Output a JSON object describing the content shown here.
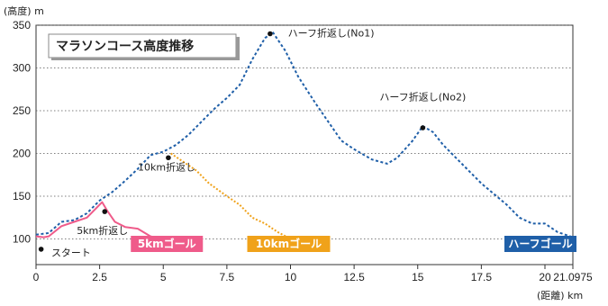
{
  "chart_data": {
    "type": "line",
    "title": "マラソンコース高度推移",
    "ylabel": "(高度) m",
    "xlabel": "(距離) km",
    "ylim": [
      70,
      350
    ],
    "xlim": [
      0,
      21.0975
    ],
    "y_ticks": [
      "100",
      "150",
      "200",
      "250",
      "300",
      "350"
    ],
    "x_ticks": [
      "0",
      "2.5",
      "5",
      "7.5",
      "10",
      "12.5",
      "15",
      "17.5",
      "20",
      "21.0975"
    ],
    "grid": true,
    "series": [
      {
        "name": "ハーフ",
        "color": "#1f5fa8",
        "style": "dashed",
        "x": [
          0,
          0.5,
          1,
          1.5,
          2,
          2.5,
          3,
          3.5,
          4,
          4.5,
          5,
          5.5,
          6,
          6.5,
          7,
          7.5,
          8,
          8.5,
          9,
          9.3,
          9.8,
          10.3,
          11,
          12,
          12.5,
          13.2,
          13.8,
          14.2,
          14.8,
          15.2,
          15.6,
          16,
          16.5,
          17.5,
          18.5,
          19,
          19.5,
          20,
          20.5,
          21.0975
        ],
        "y": [
          105,
          107,
          120,
          122,
          130,
          145,
          155,
          168,
          182,
          198,
          202,
          210,
          222,
          237,
          252,
          265,
          280,
          310,
          335,
          342,
          320,
          290,
          258,
          215,
          205,
          193,
          188,
          195,
          215,
          232,
          225,
          210,
          195,
          165,
          140,
          125,
          118,
          118,
          108,
          102
        ]
      },
      {
        "name": "10km",
        "color": "#f0a21a",
        "style": "dotted",
        "x": [
          5.3,
          5.8,
          6.3,
          6.8,
          7.5,
          8,
          8.5,
          9,
          9.5,
          10
        ],
        "y": [
          200,
          190,
          180,
          165,
          150,
          140,
          125,
          118,
          108,
          100
        ]
      },
      {
        "name": "5km",
        "color": "#ef5b8a",
        "style": "solid",
        "x": [
          0,
          0.3,
          0.5,
          1,
          1.5,
          2,
          2.4,
          2.6,
          2.8,
          3.1,
          3.5,
          4,
          4.5,
          5
        ],
        "y": [
          103,
          102,
          103,
          115,
          120,
          125,
          137,
          143,
          133,
          120,
          114,
          112,
          103,
          100
        ]
      }
    ],
    "points": [
      {
        "x": 0.2,
        "y": 88
      },
      {
        "x": 2.7,
        "y": 132
      },
      {
        "x": 5.2,
        "y": 195
      },
      {
        "x": 9.2,
        "y": 340
      },
      {
        "x": 15.2,
        "y": 230
      }
    ],
    "annotations": [
      {
        "text": "スタート",
        "x": 0.6,
        "y": 80
      },
      {
        "text": "5km折返し",
        "x": 1.6,
        "y": 106
      },
      {
        "text": "10km折返し",
        "x": 4.0,
        "y": 180
      },
      {
        "text": "ハーフ折返し(No1)",
        "x": 9.9,
        "y": 337
      },
      {
        "text": "ハーフ折返し(No2)",
        "x": 13.5,
        "y": 262
      }
    ],
    "goals": [
      {
        "text": "5kmゴール",
        "x": 5,
        "color": "#ef5b8a"
      },
      {
        "text": "10kmゴール",
        "x": 10,
        "color": "#f0a21a"
      },
      {
        "text": "ハーフゴール",
        "x": 21.0975,
        "color": "#1f5fa8"
      }
    ]
  }
}
